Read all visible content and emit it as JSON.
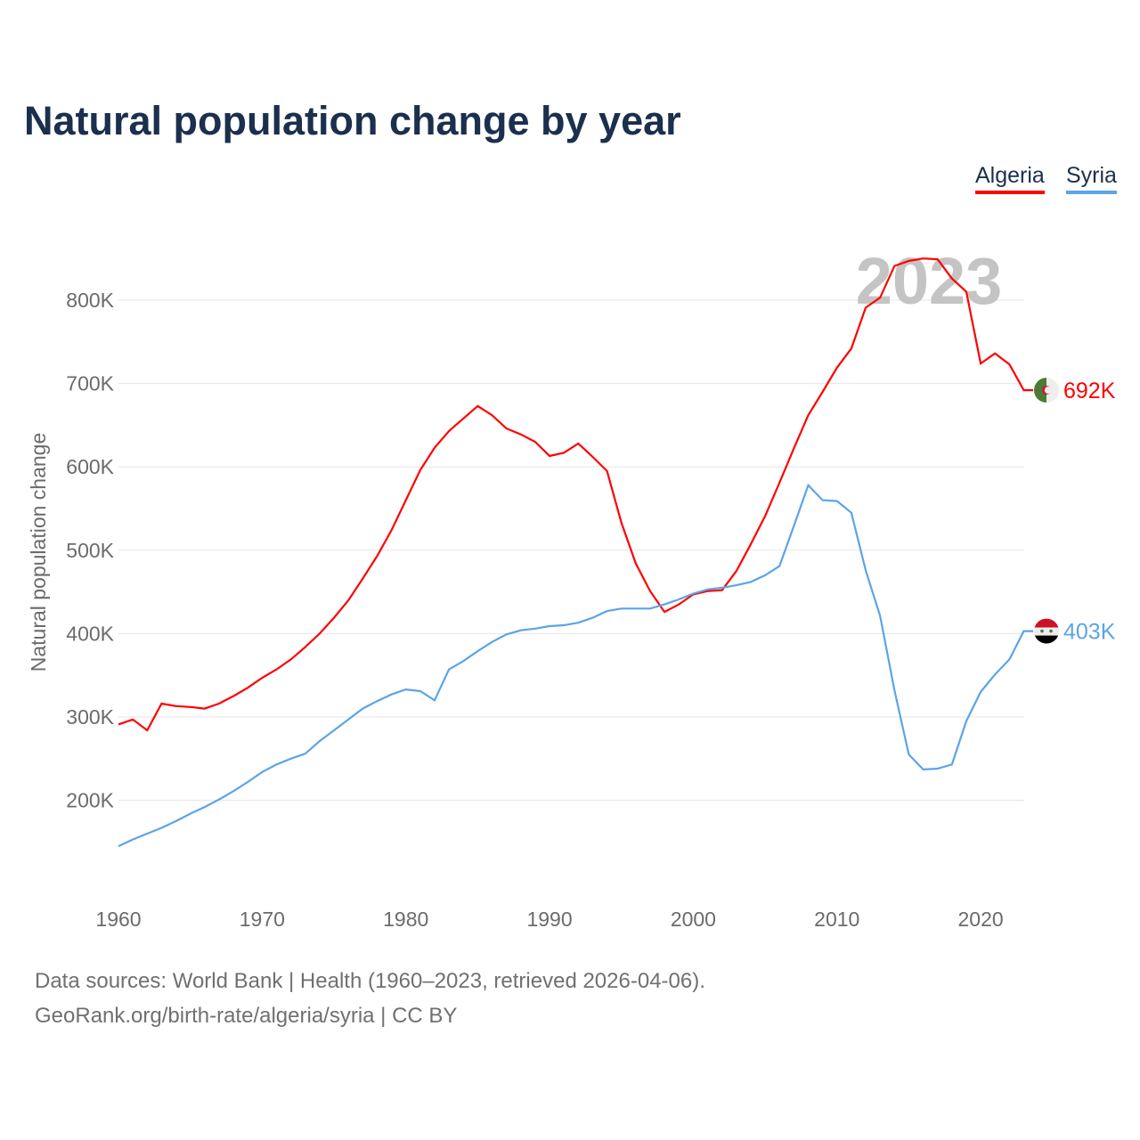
{
  "title": "Natural population change by year",
  "legend": [
    {
      "label": "Algeria",
      "color": "#ff0000"
    },
    {
      "label": "Syria",
      "color": "#5ba4e8"
    }
  ],
  "year_watermark": "2023",
  "footer": {
    "line1": "Data sources: World Bank | Health (1960–2023, retrieved 2026-04-06).",
    "line2": "GeoRank.org/birth-rate/algeria/syria | CC BY"
  },
  "chart_data": {
    "type": "line",
    "title": "Natural population change by year",
    "xlabel": "",
    "ylabel": "Natural population change",
    "xlim": [
      1960,
      2023
    ],
    "ylim": [
      100000,
      850000
    ],
    "xticks": [
      1960,
      1970,
      1980,
      1990,
      2000,
      2010,
      2020
    ],
    "yticks": [
      200000,
      300000,
      400000,
      500000,
      600000,
      700000,
      800000
    ],
    "ytick_labels": [
      "200K",
      "300K",
      "400K",
      "500K",
      "600K",
      "700K",
      "800K"
    ],
    "grid": true,
    "legend_position": "top-right",
    "x_start": 1960,
    "series": [
      {
        "name": "Algeria",
        "color": "#ff0000",
        "end_label": "692K",
        "flag": "algeria-flag",
        "values_k": [
          291,
          297,
          284,
          316,
          313,
          312,
          310,
          316,
          325,
          335,
          347,
          357,
          369,
          384,
          400,
          419,
          440,
          466,
          493,
          524,
          560,
          596,
          623,
          643,
          658,
          673,
          662,
          646,
          639,
          630,
          613,
          617,
          628,
          612,
          595,
          533,
          484,
          451,
          426,
          435,
          447,
          451,
          452,
          475,
          507,
          541,
          581,
          622,
          662,
          690,
          719,
          742,
          791,
          803,
          841,
          847,
          850,
          849,
          826,
          810,
          724,
          736,
          723,
          692
        ]
      },
      {
        "name": "Syria",
        "color": "#5ba4e8",
        "end_label": "403K",
        "flag": "syria-flag",
        "values_k": [
          145,
          153,
          160,
          167,
          175,
          184,
          192,
          201,
          211,
          222,
          234,
          243,
          250,
          256,
          271,
          284,
          297,
          310,
          319,
          327,
          333,
          331,
          320,
          357,
          367,
          379,
          390,
          399,
          404,
          406,
          409,
          410,
          413,
          419,
          427,
          430,
          430,
          430,
          435,
          441,
          448,
          453,
          455,
          458,
          462,
          470,
          481,
          529,
          578,
          560,
          559,
          545,
          476,
          421,
          332,
          255,
          237,
          238,
          243,
          295,
          330,
          351,
          369,
          403
        ]
      }
    ]
  }
}
